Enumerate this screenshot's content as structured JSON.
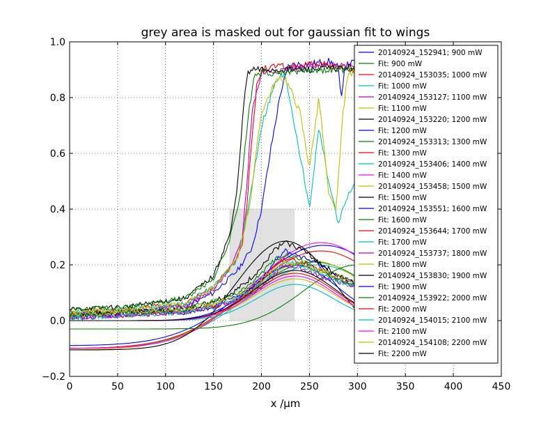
{
  "chart_data": {
    "type": "line",
    "title": "grey area is masked out for gaussian fit to wings",
    "xlabel": "x /μm",
    "ylabel": "",
    "xlim": [
      0,
      450
    ],
    "ylim": [
      -0.2,
      1.0
    ],
    "x_ticks": [
      0,
      50,
      100,
      150,
      200,
      250,
      300,
      350,
      400,
      450
    ],
    "x_tick_labels": [
      "0",
      "50",
      "100",
      "150",
      "200",
      "250",
      "300",
      "350",
      "400",
      "450"
    ],
    "y_ticks": [
      -0.2,
      0.0,
      0.2,
      0.4,
      0.6,
      0.8,
      1.0
    ],
    "y_tick_labels": [
      "−0.2",
      "0.0",
      "0.2",
      "0.4",
      "0.6",
      "0.8",
      "1.0"
    ],
    "grid": true,
    "grid_style": "dotted",
    "legend_position": "top-right",
    "mask_region": {
      "x": [
        167,
        234
      ],
      "y": [
        0.0,
        0.4
      ],
      "color": "#d9d9d9"
    },
    "series": [
      {
        "name": "20140924_152941; 900 mW",
        "color": "#0000ff",
        "kind": "data",
        "x": [
          0,
          60,
          120,
          150,
          175,
          190,
          200,
          210,
          220,
          228,
          235,
          250,
          270,
          280,
          283,
          286,
          290,
          300
        ],
        "y": [
          0.02,
          0.03,
          0.05,
          0.1,
          0.18,
          0.26,
          0.4,
          0.62,
          0.82,
          0.91,
          0.92,
          0.92,
          0.93,
          0.91,
          0.78,
          0.9,
          0.92,
          0.93
        ]
      },
      {
        "name": "Fit: 900 mW",
        "color": "#008000",
        "kind": "fit",
        "baseline": -0.1,
        "amplitude": 0.31,
        "center": 255,
        "sigma": 72
      },
      {
        "name": "20140924_153035; 1000 mW",
        "color": "#ff0000",
        "kind": "data",
        "x": [
          0,
          60,
          120,
          150,
          170,
          180,
          185,
          190,
          195,
          200,
          210,
          230,
          260,
          300
        ],
        "y": [
          0.03,
          0.04,
          0.06,
          0.12,
          0.2,
          0.28,
          0.42,
          0.65,
          0.84,
          0.9,
          0.91,
          0.91,
          0.92,
          0.9
        ]
      },
      {
        "name": "Fit: 1000 mW",
        "color": "#00bfbf",
        "kind": "fit",
        "baseline": -0.1,
        "amplitude": 0.3,
        "center": 258,
        "sigma": 73
      },
      {
        "name": "20140924_153127; 1100 mW",
        "color": "#bf00bf",
        "kind": "data",
        "x": [
          0,
          60,
          120,
          150,
          170,
          180,
          185,
          190,
          200,
          220,
          260,
          300
        ],
        "y": [
          0.02,
          0.03,
          0.05,
          0.11,
          0.2,
          0.3,
          0.5,
          0.75,
          0.89,
          0.9,
          0.91,
          0.92
        ]
      },
      {
        "name": "Fit: 1100 mW",
        "color": "#bfbf00",
        "kind": "fit",
        "baseline": -0.105,
        "amplitude": 0.32,
        "center": 252,
        "sigma": 71
      },
      {
        "name": "20140924_153220; 1200 mW",
        "color": "#000000",
        "kind": "data",
        "x": [
          0,
          60,
          120,
          150,
          168,
          175,
          180,
          185,
          190,
          200,
          220,
          250,
          300
        ],
        "y": [
          0.04,
          0.05,
          0.08,
          0.16,
          0.32,
          0.48,
          0.72,
          0.88,
          0.9,
          0.9,
          0.9,
          0.9,
          0.91
        ]
      },
      {
        "name": "Fit: 1200 mW",
        "color": "#0000ff",
        "kind": "fit",
        "baseline": -0.09,
        "amplitude": 0.36,
        "center": 265,
        "sigma": 75
      },
      {
        "name": "20140924_153313; 1300 mW",
        "color": "#008000",
        "kind": "data",
        "x": [
          0,
          60,
          120,
          150,
          165,
          178,
          186,
          192,
          200,
          220,
          250,
          300
        ],
        "y": [
          0.04,
          0.05,
          0.08,
          0.15,
          0.27,
          0.45,
          0.72,
          0.88,
          0.89,
          0.89,
          0.9,
          0.9
        ]
      },
      {
        "name": "Fit: 1300 mW",
        "color": "#ff0000",
        "kind": "fit",
        "baseline": -0.1,
        "amplitude": 0.35,
        "center": 262,
        "sigma": 74
      },
      {
        "name": "20140924_153406; 1400 mW",
        "color": "#00bfbf",
        "kind": "data",
        "x": [
          0,
          60,
          120,
          150,
          175,
          185,
          200,
          215,
          225,
          240,
          250,
          260,
          270,
          280,
          290,
          300
        ],
        "y": [
          0.03,
          0.04,
          0.06,
          0.12,
          0.22,
          0.38,
          0.7,
          0.86,
          0.88,
          0.6,
          0.4,
          0.7,
          0.5,
          0.35,
          0.45,
          0.5
        ]
      },
      {
        "name": "Fit: 1400 mW",
        "color": "#ff00ff",
        "kind": "fit",
        "baseline": -0.1,
        "amplitude": 0.38,
        "center": 262,
        "sigma": 70
      },
      {
        "name": "20140924_153458; 1500 mW",
        "color": "#bfbf00",
        "kind": "data",
        "x": [
          0,
          60,
          120,
          150,
          175,
          188,
          200,
          215,
          225,
          240,
          250,
          260,
          270,
          278,
          285,
          290,
          300
        ],
        "y": [
          0.03,
          0.04,
          0.06,
          0.12,
          0.22,
          0.42,
          0.75,
          0.86,
          0.87,
          0.75,
          0.55,
          0.8,
          0.45,
          0.4,
          0.75,
          0.88,
          0.9
        ]
      },
      {
        "name": "Fit: 1500 mW",
        "color": "#000000",
        "kind": "fit",
        "baseline": -0.105,
        "amplitude": 0.39,
        "center": 225,
        "sigma": 52
      },
      {
        "name": "20140924_153551; 1600 mW",
        "color": "#0000ff",
        "kind": "data",
        "x": [
          0,
          60,
          120,
          150,
          170,
          185,
          200,
          215,
          225,
          240,
          260,
          280,
          300
        ],
        "y": [
          0.01,
          0.02,
          0.03,
          0.05,
          0.08,
          0.1,
          0.15,
          0.22,
          0.25,
          0.23,
          0.2,
          0.16,
          0.13
        ]
      },
      {
        "name": "Fit: 1600 mW",
        "color": "#008000",
        "kind": "fit",
        "baseline": -0.03,
        "amplitude": 0.23,
        "center": 300,
        "sigma": 55
      },
      {
        "name": "20140924_153644; 1700 mW",
        "color": "#ff0000",
        "kind": "data",
        "x": [
          0,
          60,
          120,
          150,
          170,
          185,
          200,
          215,
          225,
          240,
          260,
          280,
          300
        ],
        "y": [
          0.01,
          0.02,
          0.03,
          0.05,
          0.07,
          0.1,
          0.14,
          0.2,
          0.22,
          0.21,
          0.18,
          0.15,
          0.12
        ]
      },
      {
        "name": "Fit: 1700 mW",
        "color": "#00bfbf",
        "kind": "fit",
        "baseline": 0.0,
        "amplitude": 0.13,
        "center": 235,
        "sigma": 40
      },
      {
        "name": "20140924_153737; 1800 mW",
        "color": "#bf00bf",
        "kind": "data",
        "x": [
          0,
          60,
          120,
          150,
          170,
          185,
          200,
          215,
          225,
          240,
          260,
          280,
          300
        ],
        "y": [
          0.01,
          0.02,
          0.03,
          0.05,
          0.07,
          0.09,
          0.12,
          0.17,
          0.2,
          0.19,
          0.16,
          0.14,
          0.12
        ]
      },
      {
        "name": "Fit: 1800 mW",
        "color": "#bfbf00",
        "kind": "fit",
        "baseline": 0.0,
        "amplitude": 0.15,
        "center": 235,
        "sigma": 42
      },
      {
        "name": "20140924_153830; 1900 mW",
        "color": "#000000",
        "kind": "data",
        "x": [
          0,
          60,
          120,
          150,
          170,
          185,
          200,
          215,
          225,
          240,
          260,
          280,
          300
        ],
        "y": [
          0.02,
          0.03,
          0.04,
          0.07,
          0.1,
          0.14,
          0.19,
          0.26,
          0.28,
          0.26,
          0.21,
          0.16,
          0.13
        ]
      },
      {
        "name": "Fit: 1900 mW",
        "color": "#0000ff",
        "kind": "fit",
        "baseline": 0.0,
        "amplitude": 0.2,
        "center": 235,
        "sigma": 44
      },
      {
        "name": "20140924_153922; 2000 mW",
        "color": "#008000",
        "kind": "data",
        "x": [
          0,
          60,
          120,
          150,
          170,
          185,
          200,
          215,
          225,
          240,
          260,
          280,
          300
        ],
        "y": [
          0.02,
          0.03,
          0.04,
          0.07,
          0.09,
          0.12,
          0.17,
          0.22,
          0.24,
          0.22,
          0.18,
          0.15,
          0.12
        ]
      },
      {
        "name": "Fit: 2000 mW",
        "color": "#ff0000",
        "kind": "fit",
        "baseline": 0.0,
        "amplitude": 0.17,
        "center": 235,
        "sigma": 43
      },
      {
        "name": "20140924_154015; 2100 mW",
        "color": "#00bfbf",
        "kind": "data",
        "x": [
          0,
          60,
          120,
          150,
          170,
          185,
          200,
          215,
          225,
          240,
          260,
          280,
          300
        ],
        "y": [
          0.01,
          0.02,
          0.03,
          0.05,
          0.07,
          0.1,
          0.13,
          0.18,
          0.21,
          0.2,
          0.17,
          0.14,
          0.12
        ]
      },
      {
        "name": "Fit: 2100 mW",
        "color": "#ff00ff",
        "kind": "fit",
        "baseline": 0.0,
        "amplitude": 0.16,
        "center": 235,
        "sigma": 42
      },
      {
        "name": "20140924_154108; 2200 mW",
        "color": "#bfbf00",
        "kind": "data",
        "x": [
          0,
          60,
          120,
          150,
          170,
          185,
          200,
          215,
          225,
          240,
          260,
          280,
          300
        ],
        "y": [
          0.02,
          0.03,
          0.04,
          0.06,
          0.08,
          0.11,
          0.15,
          0.19,
          0.21,
          0.2,
          0.18,
          0.16,
          0.14
        ]
      },
      {
        "name": "Fit: 2200 mW",
        "color": "#000000",
        "kind": "fit",
        "baseline": 0.0,
        "amplitude": 0.18,
        "center": 235,
        "sigma": 43
      }
    ]
  }
}
